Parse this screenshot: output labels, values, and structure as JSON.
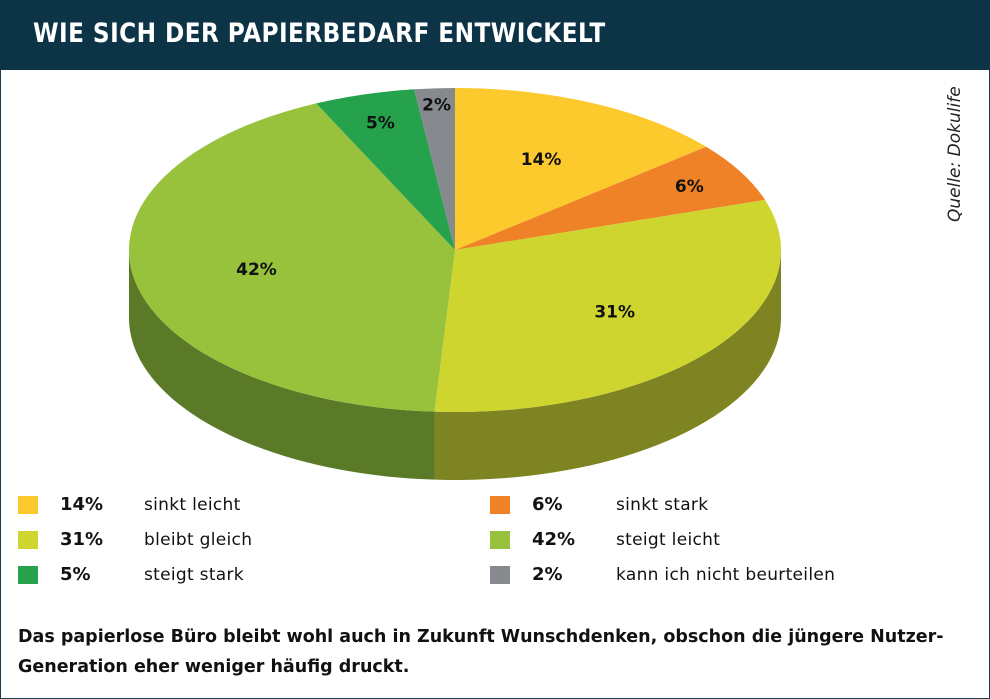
{
  "header": {
    "title": "WIE SICH DER PAPIERBEDARF ENTWICKELT"
  },
  "source": "Quelle: Dokulife",
  "chart_data": {
    "type": "pie",
    "title": "WIE SICH DER PAPIERBEDARF ENTWICKELT",
    "slices": [
      {
        "label": "sinkt leicht",
        "value": 14,
        "display": "14%",
        "color": "#fdca2e",
        "side": "#b48f18"
      },
      {
        "label": "sinkt stark",
        "value": 6,
        "display": "6%",
        "color": "#ef8226",
        "side": "#a85a16"
      },
      {
        "label": "bleibt gleich",
        "value": 31,
        "display": "31%",
        "color": "#cdd52e",
        "side": "#7f8422"
      },
      {
        "label": "steigt leicht",
        "value": 42,
        "display": "42%",
        "color": "#98c13c",
        "side": "#5b7a27"
      },
      {
        "label": "steigt stark",
        "value": 5,
        "display": "5%",
        "color": "#25a24b",
        "side": "#166b31"
      },
      {
        "label": "kann ich nicht beurteilen",
        "value": 2,
        "display": "2%",
        "color": "#868a8f",
        "side": "#55585c"
      }
    ]
  },
  "legend": [
    {
      "pct": "14%",
      "text": "sinkt leicht",
      "color": "#fdca2e"
    },
    {
      "pct": "6%",
      "text": "sinkt stark",
      "color": "#ef8226"
    },
    {
      "pct": "31%",
      "text": "bleibt gleich",
      "color": "#cdd52e"
    },
    {
      "pct": "42%",
      "text": "steigt leicht",
      "color": "#98c13c"
    },
    {
      "pct": "5%",
      "text": "steigt stark",
      "color": "#25a24b"
    },
    {
      "pct": "2%",
      "text": "kann ich nicht beurteilen",
      "color": "#868a8f"
    }
  ],
  "caption": "Das papierlose Büro bleibt wohl auch in Zukunft Wunschdenken, obschon die jüngere Nutzer-Generation eher weniger häufig druckt."
}
